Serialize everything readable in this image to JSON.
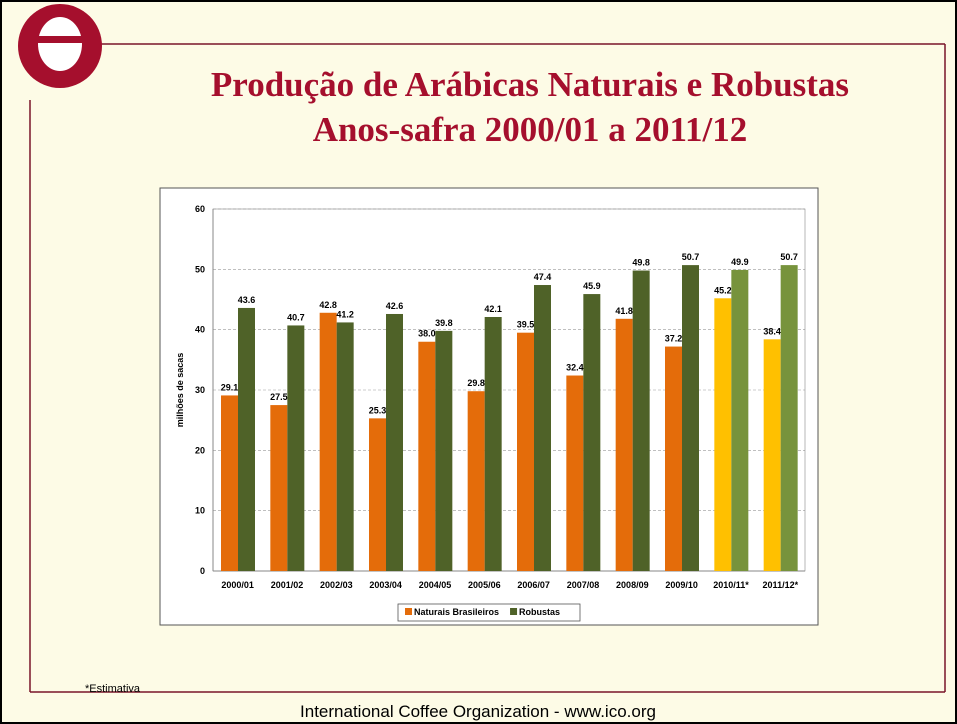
{
  "title_lines": [
    "Produção de Arábicas Naturais e Robustas",
    "Anos-safra 2000/01 a 2011/12"
  ],
  "footnote": "*Estimativa",
  "footer": "International Coffee Organization  -  www.ico.org",
  "chart_data": {
    "type": "bar",
    "y_label": "milhões de sacas",
    "categories": [
      "2000/01",
      "2001/02",
      "2002/03",
      "2003/04",
      "2004/05",
      "2005/06",
      "2006/07",
      "2007/08",
      "2008/09",
      "2009/10",
      "2010/11*",
      "2011/12*"
    ],
    "series": [
      {
        "name": "Naturais Brasileiros",
        "color": "#e46c0a",
        "colors": [
          "#e46c0a",
          "#e46c0a",
          "#e46c0a",
          "#e46c0a",
          "#e46c0a",
          "#e46c0a",
          "#e46c0a",
          "#e46c0a",
          "#e46c0a",
          "#e46c0a",
          "#ffc000",
          "#ffc000"
        ],
        "values": [
          29.1,
          27.5,
          42.8,
          25.3,
          38,
          29.8,
          39.5,
          32.4,
          41.8,
          37.2,
          45.2,
          38.4
        ],
        "value_labels": [
          "29.1",
          "27.5",
          "42.8",
          "25.3",
          "38.0",
          "29.8",
          "39.5",
          "32.4",
          "41.8",
          "37.2",
          "45.2",
          "38.4"
        ]
      },
      {
        "name": "Robustas",
        "color": "#4f6228",
        "colors": [
          "#4f6228",
          "#4f6228",
          "#4f6228",
          "#4f6228",
          "#4f6228",
          "#4f6228",
          "#4f6228",
          "#4f6228",
          "#4f6228",
          "#4f6228",
          "#77933c",
          "#77933c"
        ],
        "values": [
          43.6,
          40.7,
          41.2,
          42.6,
          39.8,
          42.1,
          47.4,
          45.9,
          49.8,
          50.7,
          49.9,
          50.7
        ],
        "value_labels": [
          "43.6",
          "40.7",
          "41.2",
          "42.6",
          "39.8",
          "42.1",
          "47.4",
          "45.9",
          "49.8",
          "50.7",
          "49.9",
          "50.7"
        ]
      }
    ],
    "ylim": [
      0,
      60
    ],
    "yticks": [
      0,
      10,
      20,
      30,
      40,
      50,
      60
    ],
    "grid": true,
    "legend": "bottom"
  }
}
